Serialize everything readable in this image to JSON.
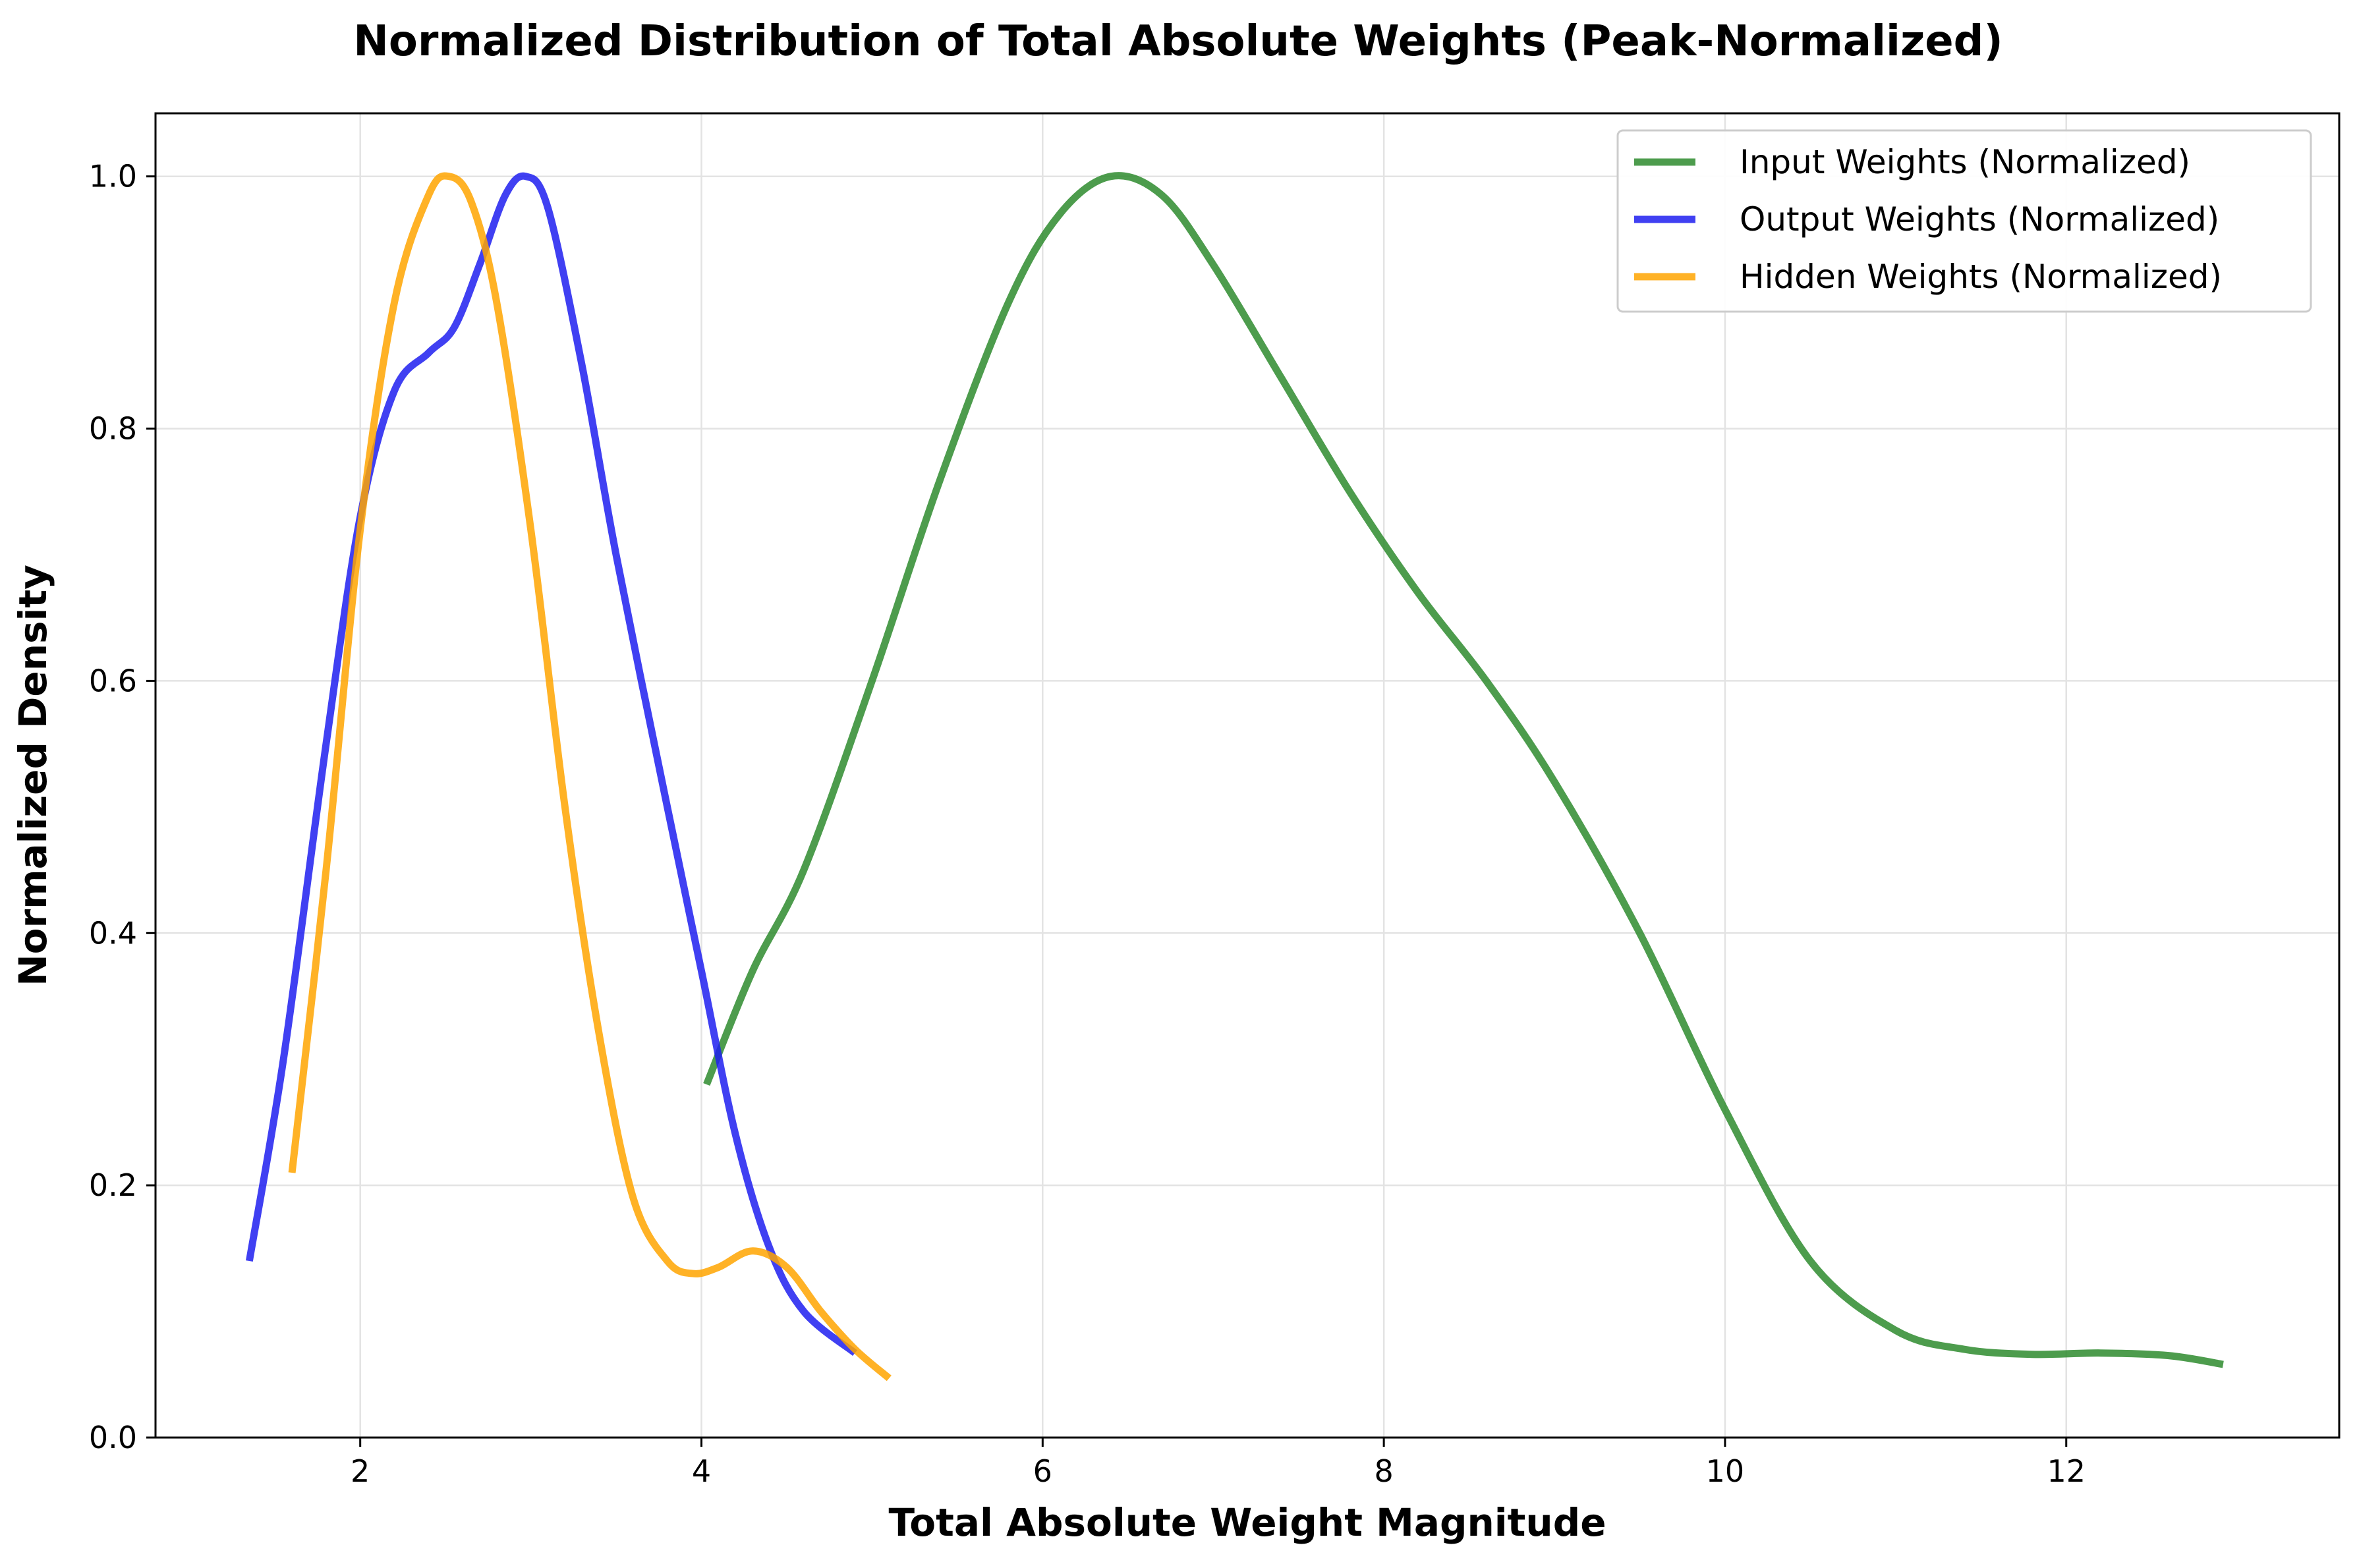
{
  "chart_data": {
    "type": "line",
    "title": "Normalized Distribution of Total Absolute Weights (Peak-Normalized)",
    "xlabel": "Total Absolute Weight Magnitude",
    "ylabel": "Normalized Density",
    "xlim": [
      0.8,
      13.6
    ],
    "ylim": [
      0.0,
      1.05
    ],
    "xticks": [
      2,
      4,
      6,
      8,
      10,
      12
    ],
    "yticks": [
      0.0,
      0.2,
      0.4,
      0.6,
      0.8,
      1.0
    ],
    "xtick_labels": [
      "2",
      "4",
      "6",
      "8",
      "10",
      "12"
    ],
    "ytick_labels": [
      "0.0",
      "0.2",
      "0.4",
      "0.6",
      "0.8",
      "1.0"
    ],
    "grid": true,
    "legend_position": "top-right",
    "series": [
      {
        "name": "Input Weights (Normalized)",
        "color": "#2e8b2e",
        "x": [
          4.03,
          4.3,
          4.6,
          5.0,
          5.4,
          5.8,
          6.1,
          6.4,
          6.7,
          7.0,
          7.4,
          7.8,
          8.2,
          8.6,
          9.0,
          9.5,
          10.0,
          10.5,
          11.0,
          11.4,
          11.8,
          12.2,
          12.6,
          12.92
        ],
        "y": [
          0.28,
          0.37,
          0.45,
          0.6,
          0.76,
          0.9,
          0.97,
          1.0,
          0.985,
          0.93,
          0.84,
          0.75,
          0.67,
          0.6,
          0.52,
          0.4,
          0.26,
          0.14,
          0.085,
          0.07,
          0.066,
          0.067,
          0.065,
          0.058
        ]
      },
      {
        "name": "Output Weights (Normalized)",
        "color": "#1f1ff0",
        "x": [
          1.35,
          1.55,
          1.8,
          2.0,
          2.2,
          2.4,
          2.55,
          2.7,
          2.85,
          2.97,
          3.1,
          3.3,
          3.5,
          3.8,
          4.0,
          4.2,
          4.4,
          4.6,
          4.9
        ],
        "y": [
          0.14,
          0.3,
          0.55,
          0.73,
          0.83,
          0.86,
          0.88,
          0.93,
          0.985,
          1.0,
          0.975,
          0.85,
          0.7,
          0.5,
          0.37,
          0.24,
          0.15,
          0.1,
          0.067
        ]
      },
      {
        "name": "Hidden Weights (Normalized)",
        "color": "#ffa500",
        "x": [
          1.6,
          1.8,
          2.0,
          2.2,
          2.4,
          2.52,
          2.65,
          2.8,
          3.0,
          3.2,
          3.4,
          3.6,
          3.8,
          3.95,
          4.1,
          4.3,
          4.5,
          4.7,
          4.9,
          5.1
        ],
        "y": [
          0.21,
          0.45,
          0.72,
          0.9,
          0.985,
          1.0,
          0.98,
          0.9,
          0.72,
          0.5,
          0.32,
          0.19,
          0.14,
          0.13,
          0.135,
          0.148,
          0.135,
          0.1,
          0.07,
          0.047
        ]
      }
    ]
  }
}
